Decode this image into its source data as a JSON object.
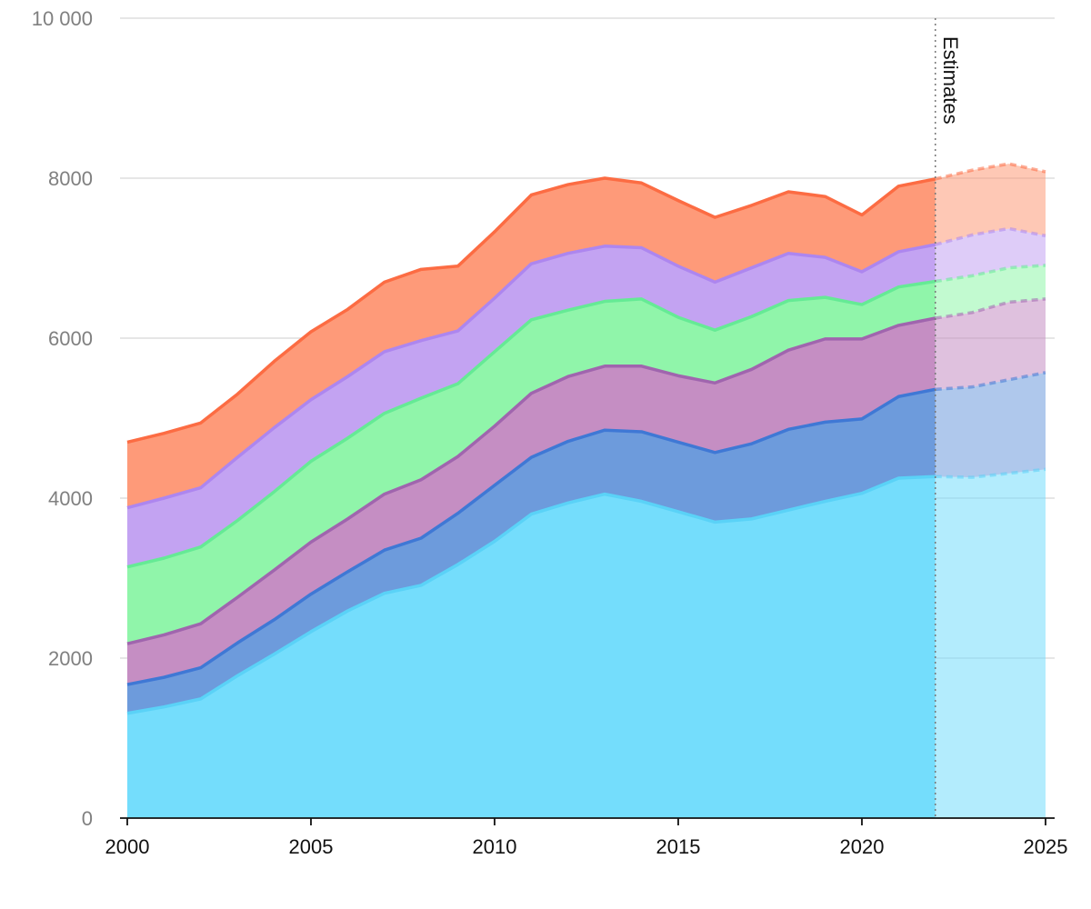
{
  "chart_data": {
    "type": "area",
    "stacked": true,
    "title": "",
    "xlabel": "",
    "ylabel": "",
    "x": [
      2000,
      2001,
      2002,
      2003,
      2004,
      2005,
      2006,
      2007,
      2008,
      2009,
      2010,
      2011,
      2012,
      2013,
      2014,
      2015,
      2016,
      2017,
      2018,
      2019,
      2020,
      2021,
      2022,
      2023,
      2024,
      2025
    ],
    "ylim": [
      0,
      10000
    ],
    "xlim": [
      2000,
      2025
    ],
    "y_ticks": [
      0,
      2000,
      4000,
      6000,
      8000,
      10000
    ],
    "y_tick_labels": [
      "0",
      "2000",
      "4000",
      "6000",
      "8000",
      "10 000"
    ],
    "x_ticks": [
      2000,
      2005,
      2010,
      2015,
      2020,
      2025
    ],
    "x_tick_labels": [
      "2000",
      "2005",
      "2010",
      "2015",
      "2020",
      "2025"
    ],
    "grid": true,
    "legend": "none",
    "estimates_start": 2022,
    "annotation": "Estimates",
    "series": [
      {
        "color": "#5ad2f7",
        "fill": "#74ddfc",
        "values": [
          1310,
          1390,
          1490,
          1780,
          2050,
          2330,
          2590,
          2810,
          2910,
          3170,
          3460,
          3800,
          3940,
          4050,
          3960,
          3830,
          3700,
          3740,
          3850,
          3960,
          4060,
          4250,
          4270,
          4260,
          4310,
          4360
        ]
      },
      {
        "color": "#3f78d5",
        "fill": "#6d9bdc",
        "values": [
          360,
          370,
          390,
          410,
          430,
          470,
          490,
          540,
          590,
          640,
          700,
          710,
          770,
          800,
          870,
          870,
          870,
          940,
          1010,
          990,
          930,
          1020,
          1090,
          1130,
          1170,
          1210
        ]
      },
      {
        "color": "#a065ae",
        "fill": "#c58ec3",
        "values": [
          510,
          530,
          550,
          570,
          620,
          650,
          660,
          700,
          730,
          710,
          740,
          800,
          810,
          800,
          820,
          830,
          870,
          930,
          990,
          1040,
          1000,
          890,
          890,
          930,
          970,
          920
        ]
      },
      {
        "color": "#65ea95",
        "fill": "#90f5aa",
        "values": [
          960,
          960,
          960,
          960,
          980,
          1010,
          1010,
          1010,
          1020,
          910,
          930,
          920,
          830,
          810,
          840,
          730,
          660,
          660,
          620,
          520,
          430,
          480,
          460,
          460,
          430,
          420
        ]
      },
      {
        "color": "#ad86ef",
        "fill": "#c3a3f2",
        "values": [
          740,
          750,
          740,
          790,
          800,
          770,
          770,
          770,
          720,
          660,
          670,
          700,
          710,
          690,
          640,
          640,
          600,
          610,
          590,
          500,
          410,
          440,
          460,
          510,
          490,
          370
        ]
      },
      {
        "color": "#fc6c43",
        "fill": "#fe9a79",
        "values": [
          820,
          810,
          810,
          790,
          830,
          850,
          840,
          870,
          890,
          810,
          830,
          860,
          860,
          850,
          810,
          820,
          810,
          780,
          770,
          760,
          710,
          820,
          820,
          810,
          810,
          800
        ]
      }
    ]
  }
}
